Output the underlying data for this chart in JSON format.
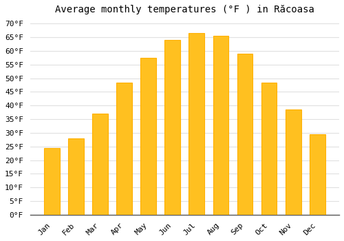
{
  "title": "Average monthly temperatures (°F ) in Răcoasa",
  "months": [
    "Jan",
    "Feb",
    "Mar",
    "Apr",
    "May",
    "Jun",
    "Jul",
    "Aug",
    "Sep",
    "Oct",
    "Nov",
    "Dec"
  ],
  "values": [
    24.5,
    28.0,
    37.0,
    48.5,
    57.5,
    64.0,
    66.5,
    65.5,
    59.0,
    48.5,
    38.5,
    29.5
  ],
  "bar_color": "#FFC020",
  "bar_edge_color": "#FFB000",
  "background_color": "#ffffff",
  "grid_color": "#e0e0e0",
  "ylim": [
    0,
    72
  ],
  "yticks": [
    0,
    5,
    10,
    15,
    20,
    25,
    30,
    35,
    40,
    45,
    50,
    55,
    60,
    65,
    70
  ],
  "title_fontsize": 10,
  "tick_fontsize": 8,
  "font_family": "monospace"
}
